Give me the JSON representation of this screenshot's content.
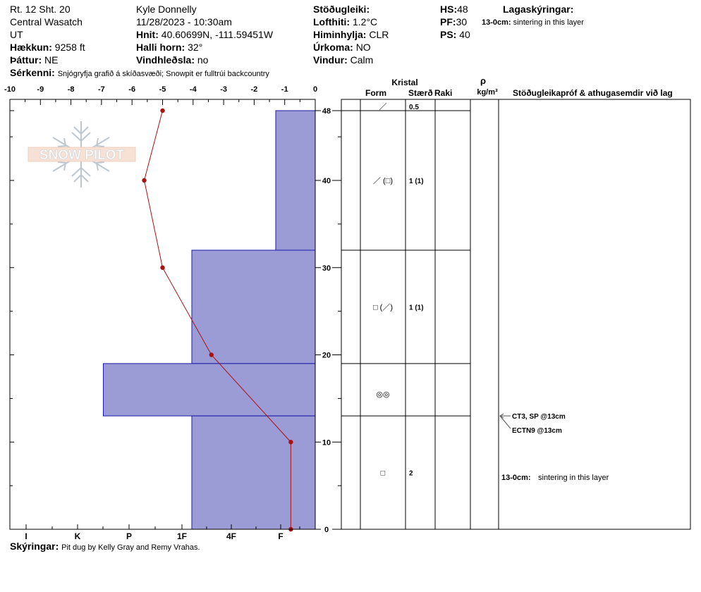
{
  "header": {
    "route": "Rt. 12 Sht. 20",
    "observer": "Kyle Donnelly",
    "region": "Central Wasatch",
    "datetime": "11/28/2023 - 10:30am",
    "state": "UT",
    "hnit_label": "Hnit:",
    "hnit_value": "40.60699N, -111.59451W",
    "haekkun_label": "Hækkun:",
    "haekkun_value": "9258 ft",
    "halli_label": "Halli horn:",
    "halli_value": "32°",
    "thattur_label": "Þáttur:",
    "thattur_value": "NE",
    "vindhl_label": "Vindhleðsla:",
    "vindhl_value": "no",
    "serkenni_label": "Sérkenni:",
    "serkenni_value": "Snjógryfja grafið á skíðasvæði; Snowpit er fulltrúi backcountry",
    "stodug_label": "Stöðugleiki:",
    "lofthiti_label": "Lofthiti:",
    "lofthiti_value": "1.2°C",
    "himin_label": "Himinhylja:",
    "himin_value": "CLR",
    "urkoma_label": "Úrkoma:",
    "urkoma_value": "NO",
    "vindur_label": "Vindur:",
    "vindur_value": "Calm",
    "hs_label": "HS:",
    "hs_value": "48",
    "pf_label": "PF:",
    "pf_value": "30",
    "ps_label": "PS:",
    "ps_value": "40",
    "lagaskyr_label": "Lagaskýringar:",
    "lagaskyr_depth": "13-0cm:",
    "lagaskyr_text": "sintering in this layer"
  },
  "table_headers": {
    "kristal": "Kristal",
    "form": "Form",
    "staerd": "Stærð",
    "raki": "Raki",
    "rho": "ρ",
    "rho_unit": "kg/m³",
    "tests": "Stöðugleikapróf & athugasemdir við lag"
  },
  "logo_text": "SNOW PILOT",
  "footer": {
    "label": "Skýringar:",
    "text": "Pit dug by Kelly Gray and Remy Vrahas."
  },
  "chart_data": {
    "type": "snow_profile",
    "temperature_axis": {
      "ticks": [
        "-10",
        "-9",
        "-8",
        "-7",
        "-6",
        "-5",
        "-4",
        "-3",
        "-2",
        "-1",
        "0"
      ],
      "range": [
        -10,
        0
      ]
    },
    "depth_axis": {
      "ticks": [
        "48",
        "40",
        "30",
        "20",
        "10",
        "0"
      ],
      "range": [
        0,
        48
      ]
    },
    "hardness_axis": {
      "labels": [
        "I",
        "K",
        "P",
        "1F",
        "4F",
        "F"
      ],
      "values": [
        6,
        5,
        4,
        3,
        2,
        1
      ]
    },
    "hardness_layers": [
      {
        "top": 48,
        "bottom": 32,
        "hardness": 1.1
      },
      {
        "top": 32,
        "bottom": 19,
        "hardness": 2.8
      },
      {
        "top": 19,
        "bottom": 13,
        "hardness": 4.5
      },
      {
        "top": 13,
        "bottom": 0,
        "hardness": 2.8
      }
    ],
    "temperature_profile": [
      {
        "depth": 48,
        "temp": -5.0
      },
      {
        "depth": 40,
        "temp": -5.6
      },
      {
        "depth": 30,
        "temp": -5.0
      },
      {
        "depth": 20,
        "temp": -3.4
      },
      {
        "depth": 10,
        "temp": -0.8
      },
      {
        "depth": 0,
        "temp": -0.8
      }
    ],
    "layer_boundaries": [
      48,
      32,
      19,
      13,
      0
    ],
    "crystal_rows": [
      {
        "depth": 48.5,
        "form": "／",
        "size": "0.5"
      },
      {
        "depth": 40,
        "form": "／ (□)",
        "size": "1 (1)"
      },
      {
        "depth": 25.5,
        "form": "□ (／)",
        "size": "1 (1)"
      },
      {
        "depth": 15.5,
        "form": "◎◎",
        "size": ""
      },
      {
        "depth": 6.5,
        "form": "□",
        "size": "2"
      }
    ],
    "test_results": [
      {
        "depth": 13,
        "text": "CT3, SP @13cm"
      },
      {
        "depth": 13,
        "text": "ECTN9 @13cm"
      }
    ],
    "layer_comments": [
      {
        "depth": 6,
        "range": "13-0cm:",
        "text": "sintering in this layer"
      }
    ],
    "colors": {
      "hardness_fill": "#9b9bd6",
      "hardness_stroke": "#1a1aa8",
      "temp_line": "#aa1111"
    }
  }
}
